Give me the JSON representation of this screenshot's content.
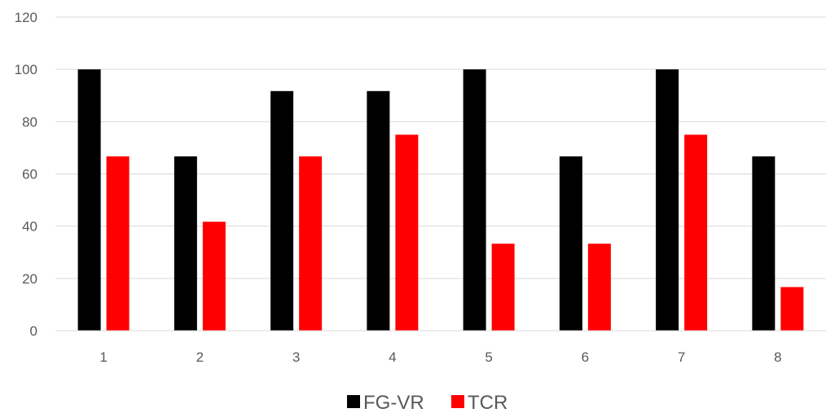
{
  "chart_data": {
    "type": "bar",
    "title": "",
    "xlabel": "",
    "ylabel": "",
    "categories": [
      "1",
      "2",
      "3",
      "4",
      "5",
      "6",
      "7",
      "8"
    ],
    "series": [
      {
        "name": "FG-VR",
        "color": "#000000",
        "values": [
          100,
          66.7,
          91.7,
          91.7,
          100,
          66.7,
          100,
          66.7
        ]
      },
      {
        "name": "TCR",
        "color": "#ff0000",
        "values": [
          66.7,
          41.7,
          66.7,
          75,
          33.3,
          33.3,
          75,
          16.7
        ]
      }
    ],
    "ylim": [
      0,
      120
    ],
    "yticks": [
      "0",
      "20",
      "40",
      "60",
      "80",
      "100",
      "120"
    ],
    "grid": true,
    "legend_position": "bottom"
  }
}
